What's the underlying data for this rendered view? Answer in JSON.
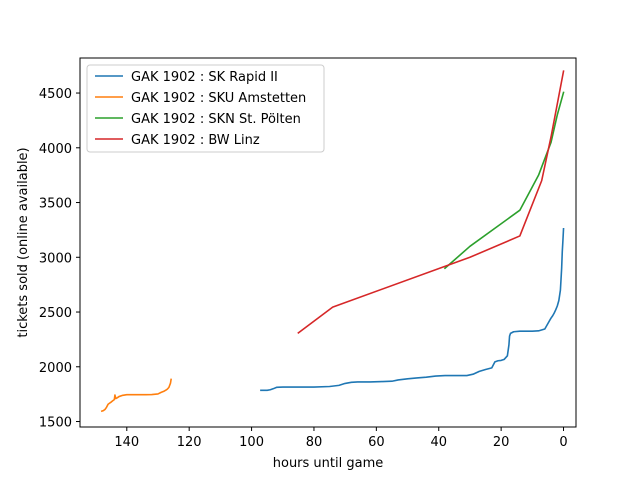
{
  "chart_data": {
    "type": "line",
    "xlabel": "hours until game",
    "ylabel": "tickets sold (online available)",
    "xlim": [
      155,
      -4
    ],
    "ylim": [
      1450,
      4820
    ],
    "x_inverted": true,
    "xticks": [
      140,
      120,
      100,
      80,
      60,
      40,
      20,
      0
    ],
    "yticks": [
      1500,
      2000,
      2500,
      3000,
      3500,
      4000,
      4500
    ],
    "grid": false,
    "legend_position": "upper left",
    "series": [
      {
        "name": "GAK 1902 : SK Rapid II",
        "color": "#1f77b4",
        "x": [
          97,
          95,
          94,
          93,
          92,
          90,
          85,
          80,
          75,
          72,
          70,
          68,
          66,
          62,
          58,
          55,
          53,
          50,
          47,
          44,
          41,
          38,
          34,
          31,
          29,
          27,
          25,
          23,
          22,
          21,
          20,
          19,
          18,
          17.5,
          17.3,
          17,
          16,
          14,
          12,
          10,
          8,
          6,
          5.5,
          5,
          4.5,
          4,
          3.5,
          3,
          2.5,
          2,
          1.5,
          1,
          0.8,
          0.6,
          0.4,
          0.2,
          0
        ],
        "y": [
          1785,
          1785,
          1790,
          1800,
          1812,
          1815,
          1815,
          1815,
          1820,
          1830,
          1848,
          1858,
          1862,
          1862,
          1865,
          1868,
          1880,
          1890,
          1898,
          1905,
          1915,
          1920,
          1920,
          1920,
          1932,
          1958,
          1975,
          1990,
          2045,
          2055,
          2058,
          2068,
          2100,
          2200,
          2280,
          2305,
          2320,
          2325,
          2325,
          2325,
          2328,
          2345,
          2370,
          2395,
          2420,
          2445,
          2465,
          2490,
          2520,
          2555,
          2605,
          2700,
          2800,
          2900,
          3050,
          3150,
          3260
        ]
      },
      {
        "name": "GAK 1902 : SKU Amstetten",
        "color": "#ff7f0e",
        "x": [
          148,
          147.5,
          147,
          146.5,
          146,
          145.5,
          145,
          144.5,
          144,
          143.8,
          143.5,
          143,
          142.5,
          141.5,
          140,
          138,
          136,
          134,
          132,
          130,
          129,
          128,
          127.5,
          127,
          126.5,
          126,
          125.8
        ],
        "y": [
          1595,
          1600,
          1610,
          1630,
          1658,
          1668,
          1678,
          1690,
          1700,
          1742,
          1710,
          1718,
          1728,
          1738,
          1745,
          1745,
          1745,
          1745,
          1746,
          1752,
          1766,
          1778,
          1786,
          1796,
          1812,
          1850,
          1885
        ]
      },
      {
        "name": "GAK 1902 : SKN St. Pölten",
        "color": "#2ca02c",
        "x": [
          38,
          30,
          14,
          8,
          4,
          2,
          0
        ],
        "y": [
          2900,
          3100,
          3430,
          3750,
          4050,
          4300,
          4505
        ]
      },
      {
        "name": "GAK 1902 : BW Linz",
        "color": "#d62728",
        "x": [
          85,
          74,
          30,
          14,
          7,
          4,
          2,
          0
        ],
        "y": [
          2310,
          2545,
          3000,
          3195,
          3700,
          4100,
          4400,
          4700
        ]
      }
    ]
  }
}
